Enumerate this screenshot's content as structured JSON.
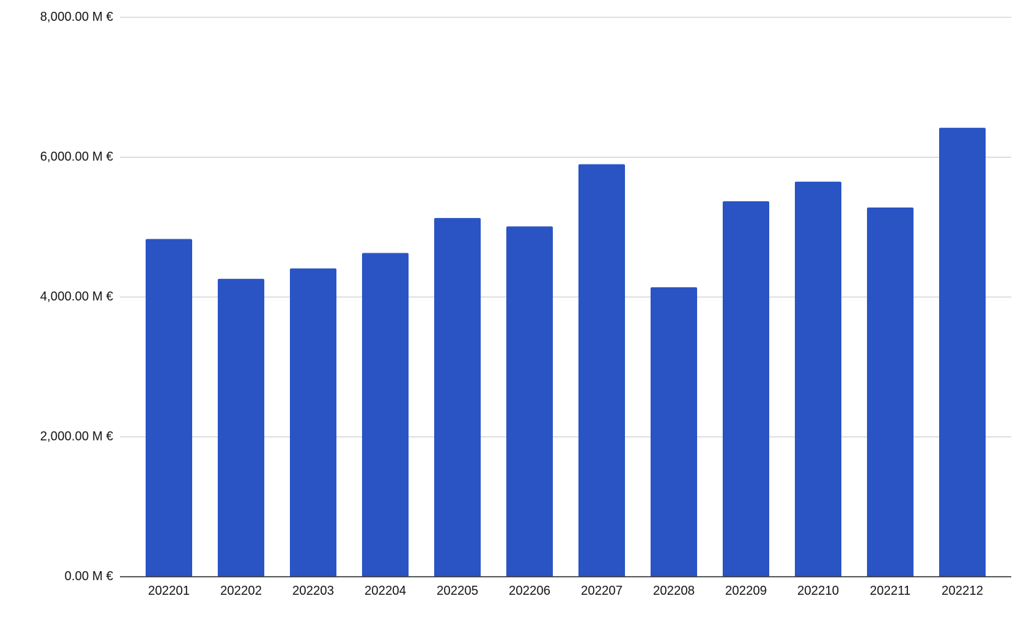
{
  "chart_data": {
    "type": "bar",
    "categories": [
      "202201",
      "202202",
      "202203",
      "202204",
      "202205",
      "202206",
      "202207",
      "202208",
      "202209",
      "202210",
      "202211",
      "202212"
    ],
    "values": [
      4830,
      4260,
      4410,
      4630,
      5130,
      5010,
      5900,
      4140,
      5370,
      5650,
      5280,
      6420
    ],
    "color": "#2a54c4",
    "ylim": [
      0,
      8000
    ],
    "yticks": [
      {
        "value": 0,
        "label": "0.00 M €"
      },
      {
        "value": 2000,
        "label": "2,000.00 M €"
      },
      {
        "value": 4000,
        "label": "4,000.00 M €"
      },
      {
        "value": 6000,
        "label": "6,000.00 M €"
      },
      {
        "value": 8000,
        "label": "8,000.00 M €"
      }
    ],
    "grid": true
  }
}
